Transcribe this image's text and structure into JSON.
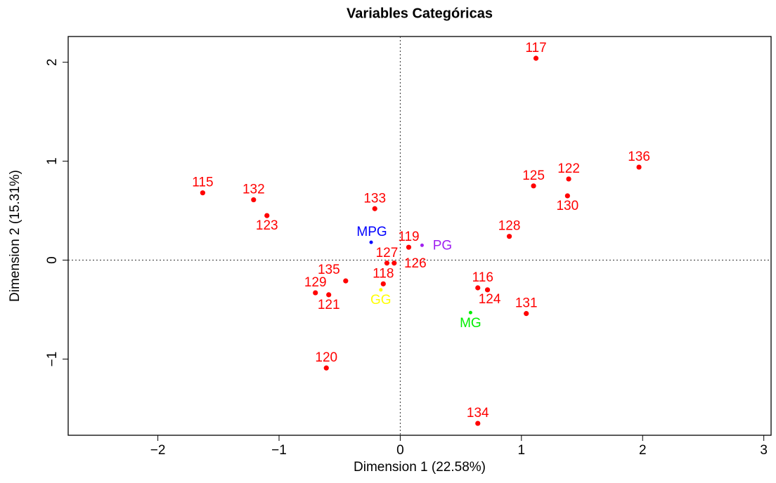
{
  "chart_data": {
    "type": "scatter",
    "title": "Variables Categóricas",
    "xlabel": "Dimension 1 (22.58%)",
    "ylabel": "Dimension 2 (15.31%)",
    "xlim": [
      -2.74,
      3.06
    ],
    "ylim": [
      -1.77,
      2.26
    ],
    "xticks": [
      {
        "value": -2,
        "label": "−2"
      },
      {
        "value": -1,
        "label": "−1"
      },
      0,
      1,
      2,
      3
    ],
    "yticks": [
      {
        "value": -1,
        "label": "−1"
      },
      0,
      1,
      2
    ],
    "series": [
      {
        "color": "#ff0000",
        "labels": [
          "117",
          "136",
          "122",
          "125",
          "130",
          "128",
          "115",
          "132",
          "123",
          "133",
          "119",
          "127",
          "126",
          "135",
          "118",
          "129",
          "121",
          "116",
          "124",
          "131",
          "120",
          "134"
        ],
        "x": [
          1.12,
          1.97,
          1.39,
          1.1,
          1.38,
          0.9,
          -1.63,
          -1.21,
          -1.1,
          -0.21,
          0.07,
          -0.11,
          -0.05,
          -0.45,
          -0.14,
          -0.7,
          -0.59,
          0.64,
          0.72,
          1.04,
          -0.61,
          0.64
        ],
        "y": [
          2.04,
          0.94,
          0.82,
          0.75,
          0.65,
          0.24,
          0.68,
          0.61,
          0.45,
          0.52,
          0.13,
          -0.03,
          -0.03,
          -0.21,
          -0.24,
          -0.33,
          -0.35,
          -0.28,
          -0.3,
          -0.54,
          -1.09,
          -1.65
        ]
      },
      {
        "colors": [
          "#0000ff",
          "#a020f0",
          "#ffff00",
          "#00ee00"
        ],
        "labels": [
          "MPG",
          "PG",
          "GG",
          "MG"
        ],
        "x": [
          -0.24,
          0.18,
          -0.16,
          0.58
        ],
        "y": [
          0.18,
          0.15,
          -0.3,
          -0.53
        ]
      }
    ]
  }
}
